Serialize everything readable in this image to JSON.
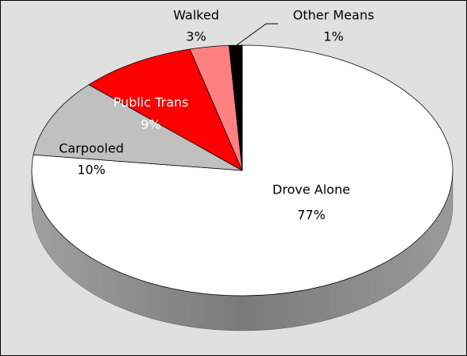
{
  "chart_data": {
    "type": "pie",
    "categories": [
      "Drove Alone",
      "Carpooled",
      "Public Trans",
      "Walked",
      "Other Means"
    ],
    "values": [
      77,
      10,
      9,
      3,
      1
    ],
    "value_labels": [
      "77%",
      "10%",
      "9%",
      "3%",
      "1%"
    ],
    "colors": [
      "#ffffff",
      "#c0c0c0",
      "#ff0000",
      "#ff8080",
      "#000000"
    ]
  }
}
